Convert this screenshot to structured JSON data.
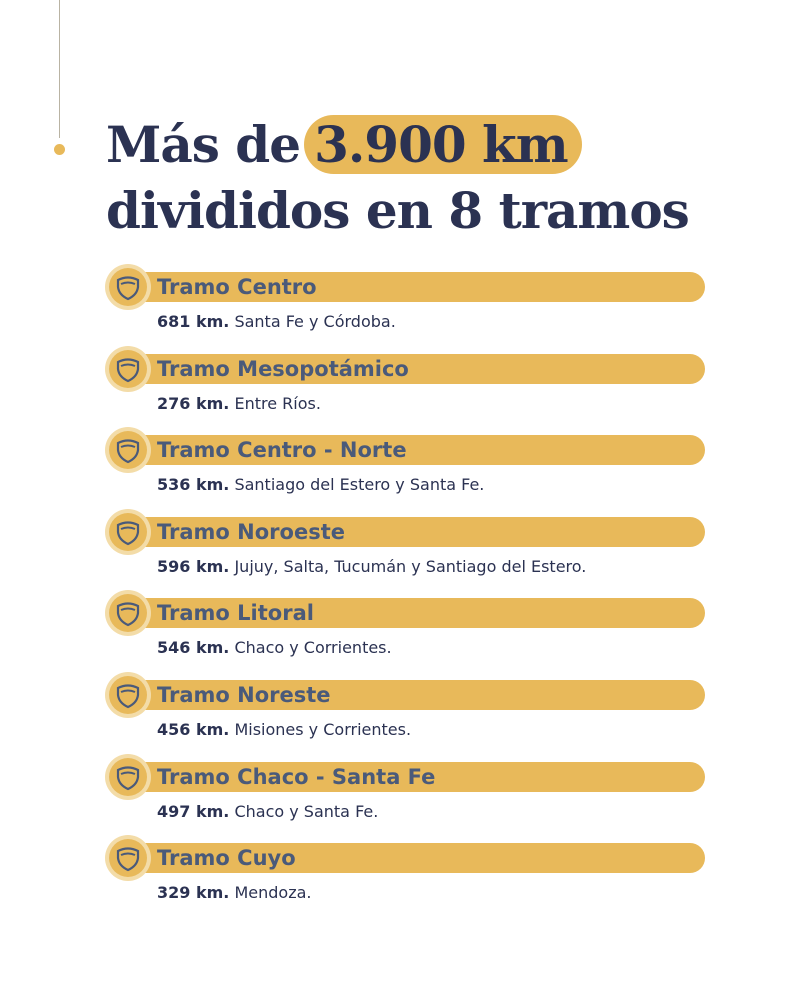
{
  "title": {
    "prefix": "Más de",
    "highlight": "3.900 km",
    "line2": "divididos en 8 tramos"
  },
  "tramos": [
    {
      "name": "Tramo Centro",
      "km": "681 km.",
      "regions": "Santa Fe y Córdoba."
    },
    {
      "name": "Tramo Mesopotámico",
      "km": "276 km.",
      "regions": "Entre Ríos."
    },
    {
      "name": "Tramo Centro - Norte",
      "km": "536 km.",
      "regions": "Santiago del Estero y Santa Fe."
    },
    {
      "name": "Tramo Noroeste",
      "km": "596 km.",
      "regions": "Jujuy, Salta, Tucumán y Santiago del Estero."
    },
    {
      "name": "Tramo Litoral",
      "km": "546 km.",
      "regions": "Chaco y Corrientes."
    },
    {
      "name": "Tramo Noreste",
      "km": "456 km.",
      "regions": "Misiones y Corrientes."
    },
    {
      "name": "Tramo Chaco - Santa Fe",
      "km": "497 km.",
      "regions": "Chaco y Santa Fe."
    },
    {
      "name": "Tramo Cuyo",
      "km": "329 km.",
      "regions": "Mendoza."
    }
  ]
}
